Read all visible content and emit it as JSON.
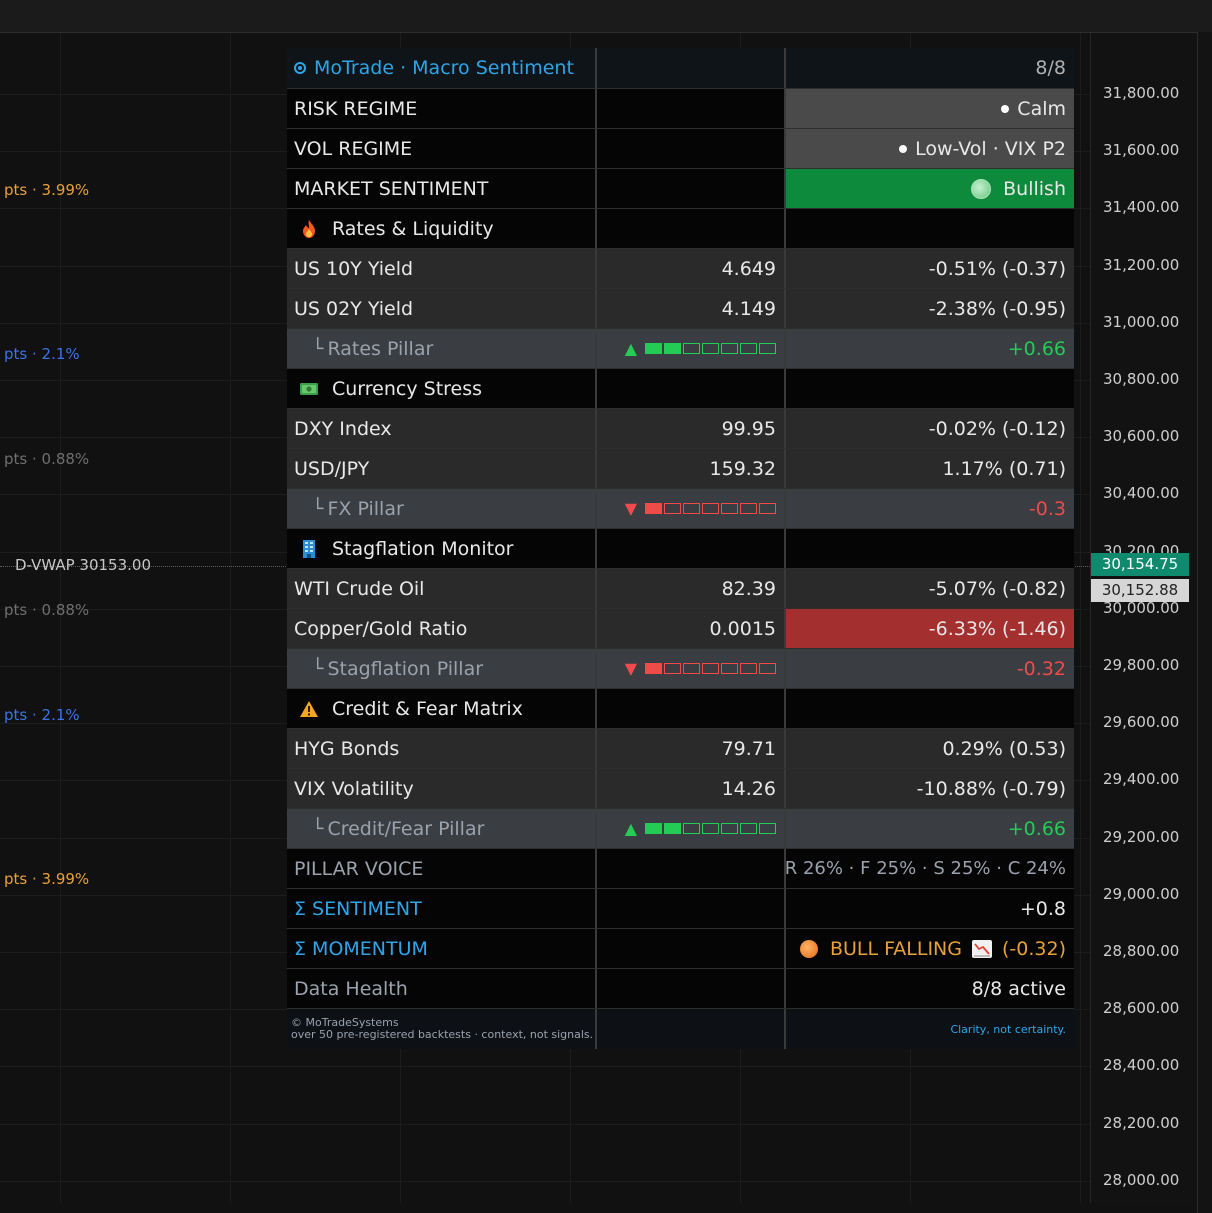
{
  "price_axis": {
    "ticks": [
      "31,800.00",
      "31,600.00",
      "31,400.00",
      "31,200.00",
      "31,000.00",
      "30,800.00",
      "30,600.00",
      "30,400.00",
      "30,200.00",
      "30,000.00",
      "29,800.00",
      "29,600.00",
      "29,400.00",
      "29,200.00",
      "29,000.00",
      "28,800.00",
      "28,600.00",
      "28,400.00",
      "28,200.00",
      "28,000.00"
    ],
    "last_price": "30,154.75",
    "vwap_price": "30,152.88"
  },
  "chart_levels": [
    {
      "text": "pts · 3.99%",
      "color": "orange"
    },
    {
      "text": "pts · 2.1%",
      "color": "blue"
    },
    {
      "text": "pts · 0.88%",
      "color": "gray"
    },
    {
      "text": "pts · 0.88%",
      "color": "gray"
    },
    {
      "text": "pts · 2.1%",
      "color": "blue"
    },
    {
      "text": "pts · 3.99%",
      "color": "orange"
    }
  ],
  "vwap_label": "D-VWAP 30153.00",
  "panel": {
    "title": "MoTrade · Macro Sentiment",
    "count": "8/8",
    "risk_regime": {
      "label": "RISK REGIME",
      "value": "Calm"
    },
    "vol_regime": {
      "label": "VOL REGIME",
      "value": "Low-Vol · VIX P2"
    },
    "market_sentiment": {
      "label": "MARKET SENTIMENT",
      "value": "Bullish"
    },
    "rates": {
      "section": "Rates & Liquidity",
      "us10y": {
        "label": "US 10Y Yield",
        "value": "4.649",
        "change": "-0.51% (-0.37)"
      },
      "us02y": {
        "label": "US 02Y Yield",
        "value": "4.149",
        "change": "-2.38% (-0.95)"
      },
      "pillar": {
        "label": "Rates Pillar",
        "score": "+0.66",
        "filled": 2,
        "total": 7,
        "direction": "up"
      }
    },
    "currency": {
      "section": "Currency Stress",
      "dxy": {
        "label": "DXY Index",
        "value": "99.95",
        "change": "-0.02% (-0.12)"
      },
      "usdjpy": {
        "label": "USD/JPY",
        "value": "159.32",
        "change": "1.17% (0.71)"
      },
      "pillar": {
        "label": "FX Pillar",
        "score": "-0.3",
        "filled": 1,
        "total": 7,
        "direction": "down"
      }
    },
    "stagflation": {
      "section": "Stagflation Monitor",
      "wti": {
        "label": "WTI Crude Oil",
        "value": "82.39",
        "change": "-5.07% (-0.82)"
      },
      "copper_gold": {
        "label": "Copper/Gold Ratio",
        "value": "0.0015",
        "change": "-6.33% (-1.46)"
      },
      "pillar": {
        "label": "Stagflation Pillar",
        "score": "-0.32",
        "filled": 1,
        "total": 7,
        "direction": "down"
      }
    },
    "credit": {
      "section": "Credit & Fear Matrix",
      "hyg": {
        "label": "HYG Bonds",
        "value": "79.71",
        "change": "0.29% (0.53)"
      },
      "vix": {
        "label": "VIX Volatility",
        "value": "14.26",
        "change": "-10.88% (-0.79)"
      },
      "pillar": {
        "label": "Credit/Fear Pillar",
        "score": "+0.66",
        "filled": 2,
        "total": 7,
        "direction": "up"
      }
    },
    "pillar_voice": {
      "label": "PILLAR VOICE",
      "value": "R 26% · F 25% · S 25% · C 24%"
    },
    "sentiment": {
      "label": "Σ SENTIMENT",
      "value": "+0.8"
    },
    "momentum": {
      "label": "Σ MOMENTUM",
      "state": "BULL FALLING",
      "delta": "(-0.32)"
    },
    "data_health": {
      "label": "Data Health",
      "value": "8/8 active"
    },
    "footer": {
      "copyright": "© MoTradeSystems",
      "note": "over 50 pre-registered backtests · context, not signals.",
      "tagline": "Clarity, not certainty."
    }
  },
  "colors": {
    "background": "#131313",
    "accent_blue": "#2ea5e8",
    "positive": "#22cc55",
    "negative": "#ef4b4b",
    "bullish_bg": "#0e8a3c",
    "warning_bg": "#a32f2f",
    "last_price_tag": "#0f8a6e"
  }
}
